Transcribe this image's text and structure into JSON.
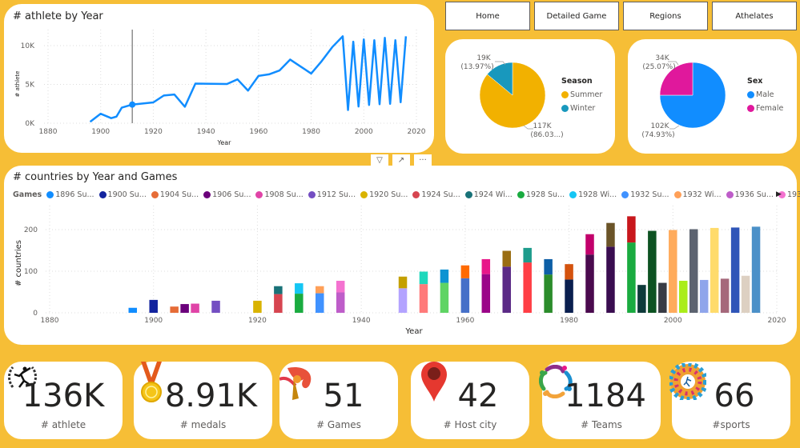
{
  "nav": {
    "buttons": [
      "Home",
      "Detailed Game",
      "Regions",
      "Athelates"
    ]
  },
  "line_card": {
    "title": "# athlete by Year"
  },
  "season_pie": {
    "legend_title": "Season",
    "labels": {
      "winter_value": "19K",
      "winter_pct": "(13.97%)",
      "summer_value": "117K",
      "summer_pct": "(86.03...)"
    }
  },
  "sex_pie": {
    "legend_title": "Sex",
    "labels": {
      "female_value": "34K",
      "female_pct": "(25.07%)",
      "male_value": "102K",
      "male_pct": "(74.93%)"
    }
  },
  "bar_card": {
    "title": "# countries by Year and Games",
    "legend_title": "Games",
    "legend_items": [
      {
        "label": "1896 Su...",
        "color": "#118dff"
      },
      {
        "label": "1900 Su...",
        "color": "#12239e"
      },
      {
        "label": "1904 Su...",
        "color": "#e66c37"
      },
      {
        "label": "1906 Su...",
        "color": "#6b007b"
      },
      {
        "label": "1908 Su...",
        "color": "#e044a7"
      },
      {
        "label": "1912 Su...",
        "color": "#744ec2"
      },
      {
        "label": "1920 Su...",
        "color": "#d9b300"
      },
      {
        "label": "1924 Su...",
        "color": "#d64550"
      },
      {
        "label": "1924 Wi...",
        "color": "#197278"
      },
      {
        "label": "1928 Su...",
        "color": "#1aab40"
      },
      {
        "label": "1928 Wi...",
        "color": "#15c6f4"
      },
      {
        "label": "1932 Su...",
        "color": "#4092ff"
      },
      {
        "label": "1932 Wi...",
        "color": "#ffa058"
      },
      {
        "label": "1936 Su...",
        "color": "#be5dc9"
      },
      {
        "label": "1936 Wi...",
        "color": "#f472d0"
      }
    ],
    "controls": {
      "filter": "filter-icon",
      "focus": "focus-mode-icon",
      "more": "more-options-icon"
    }
  },
  "chart_data": [
    {
      "type": "line",
      "title": "# athlete by Year",
      "xlabel": "Year",
      "ylabel": "# athlete",
      "xlim": [
        1880,
        2020
      ],
      "ylim": [
        0,
        12000
      ],
      "x_ticks": [
        "1880",
        "1900",
        "1920",
        "1940",
        "1960",
        "1980",
        "2000",
        "2020"
      ],
      "y_ticks": [
        "0K",
        "5K",
        "10K"
      ],
      "highlight": {
        "x": 1912,
        "y": 2400
      },
      "color": "#118dff",
      "x": [
        1896,
        1900,
        1904,
        1906,
        1908,
        1912,
        1920,
        1924,
        1928,
        1932,
        1936,
        1948,
        1952,
        1956,
        1960,
        1964,
        1968,
        1972,
        1976,
        1980,
        1984,
        1988,
        1992,
        1994,
        1996,
        1998,
        2000,
        2002,
        2004,
        2006,
        2008,
        2010,
        2012,
        2014,
        2016
      ],
      "y": [
        180,
        1220,
        650,
        850,
        2000,
        2400,
        2680,
        3570,
        3700,
        2120,
        5100,
        5050,
        5650,
        4200,
        6100,
        6300,
        6800,
        8200,
        7300,
        6400,
        8000,
        9800,
        11200,
        1700,
        10500,
        2150,
        10800,
        2350,
        10700,
        2450,
        11000,
        2500,
        10700,
        2700,
        11200
      ]
    },
    {
      "type": "pie",
      "title": "Season",
      "categories": [
        "Summer",
        "Winter"
      ],
      "values": [
        117000,
        19000
      ],
      "percents": [
        86.03,
        13.97
      ],
      "colors": [
        "#f2b100",
        "#1898bd"
      ]
    },
    {
      "type": "pie",
      "title": "Sex",
      "categories": [
        "Male",
        "Female"
      ],
      "values": [
        102000,
        34000
      ],
      "percents": [
        74.93,
        25.07
      ],
      "colors": [
        "#118dff",
        "#e0189c"
      ]
    },
    {
      "type": "bar",
      "stacked": true,
      "title": "# countries by Year and Games",
      "xlabel": "Year",
      "ylabel": "# countries",
      "xlim": [
        1880,
        2020
      ],
      "ylim": [
        0,
        240
      ],
      "x_ticks": [
        "1880",
        "1900",
        "1920",
        "1940",
        "1960",
        "1980",
        "2000",
        "2020"
      ],
      "y_ticks": [
        "0",
        "100",
        "200"
      ],
      "bars": [
        {
          "year": 1896,
          "segments": [
            {
              "value": 12,
              "color": "#118dff"
            }
          ]
        },
        {
          "year": 1900,
          "segments": [
            {
              "value": 31,
              "color": "#12239e"
            }
          ]
        },
        {
          "year": 1904,
          "segments": [
            {
              "value": 15,
              "color": "#e66c37"
            }
          ]
        },
        {
          "year": 1906,
          "segments": [
            {
              "value": 21,
              "color": "#6b007b"
            }
          ]
        },
        {
          "year": 1908,
          "segments": [
            {
              "value": 22,
              "color": "#e044a7"
            }
          ]
        },
        {
          "year": 1912,
          "segments": [
            {
              "value": 29,
              "color": "#744ec2"
            }
          ]
        },
        {
          "year": 1920,
          "segments": [
            {
              "value": 29,
              "color": "#d9b300"
            }
          ]
        },
        {
          "year": 1924,
          "segments": [
            {
              "value": 45,
              "color": "#d64550"
            },
            {
              "value": 19,
              "color": "#197278"
            }
          ]
        },
        {
          "year": 1928,
          "segments": [
            {
              "value": 46,
              "color": "#1aab40"
            },
            {
              "value": 25,
              "color": "#15c6f4"
            }
          ]
        },
        {
          "year": 1932,
          "segments": [
            {
              "value": 47,
              "color": "#4092ff"
            },
            {
              "value": 17,
              "color": "#ffa058"
            }
          ]
        },
        {
          "year": 1936,
          "segments": [
            {
              "value": 49,
              "color": "#be5dc9"
            },
            {
              "value": 28,
              "color": "#f472d0"
            }
          ]
        },
        {
          "year": 1948,
          "segments": [
            {
              "value": 59,
              "color": "#b3a3ff"
            },
            {
              "value": 28,
              "color": "#c4a000"
            }
          ]
        },
        {
          "year": 1952,
          "segments": [
            {
              "value": 69,
              "color": "#ff7a7a"
            },
            {
              "value": 30,
              "color": "#1ed8bc"
            }
          ]
        },
        {
          "year": 1956,
          "segments": [
            {
              "value": 72,
              "color": "#5fd464"
            },
            {
              "value": 32,
              "color": "#0e93d2"
            }
          ]
        },
        {
          "year": 1960,
          "segments": [
            {
              "value": 83,
              "color": "#4670c8"
            },
            {
              "value": 31,
              "color": "#ff6a00"
            }
          ]
        },
        {
          "year": 1964,
          "segments": [
            {
              "value": 93,
              "color": "#9b0588"
            },
            {
              "value": 36,
              "color": "#e8178a"
            }
          ]
        },
        {
          "year": 1968,
          "segments": [
            {
              "value": 111,
              "color": "#5b2a86"
            },
            {
              "value": 38,
              "color": "#9a6d12"
            }
          ]
        },
        {
          "year": 1972,
          "segments": [
            {
              "value": 121,
              "color": "#ff3e45"
            },
            {
              "value": 35,
              "color": "#1e9c8c"
            }
          ]
        },
        {
          "year": 1976,
          "segments": [
            {
              "value": 92,
              "color": "#2b8c2b"
            },
            {
              "value": 37,
              "color": "#0d5fa6"
            }
          ]
        },
        {
          "year": 1980,
          "segments": [
            {
              "value": 80,
              "color": "#0a1f4f"
            },
            {
              "value": 37,
              "color": "#d4530e"
            }
          ]
        },
        {
          "year": 1984,
          "segments": [
            {
              "value": 140,
              "color": "#4a0a4e"
            },
            {
              "value": 49,
              "color": "#c2006b"
            }
          ]
        },
        {
          "year": 1988,
          "segments": [
            {
              "value": 159,
              "color": "#3a0d50"
            },
            {
              "value": 57,
              "color": "#6b5428"
            }
          ]
        },
        {
          "year": 1992,
          "segments": [
            {
              "value": 169,
              "color": "#1aab40"
            },
            {
              "value": 63,
              "color": "#c8171c"
            }
          ]
        },
        {
          "year": 1994,
          "segments": [
            {
              "value": 67,
              "color": "#0e3a3a"
            }
          ]
        },
        {
          "year": 1996,
          "segments": [
            {
              "value": 197,
              "color": "#0d5222"
            }
          ]
        },
        {
          "year": 1998,
          "segments": [
            {
              "value": 72,
              "color": "#383b45"
            }
          ]
        },
        {
          "year": 2000,
          "segments": [
            {
              "value": 199,
              "color": "#ffab5c"
            }
          ]
        },
        {
          "year": 2002,
          "segments": [
            {
              "value": 77,
              "color": "#aaed1a"
            }
          ]
        },
        {
          "year": 2004,
          "segments": [
            {
              "value": 201,
              "color": "#5c6370"
            }
          ]
        },
        {
          "year": 2006,
          "segments": [
            {
              "value": 79,
              "color": "#8fa5eb"
            }
          ]
        },
        {
          "year": 2008,
          "segments": [
            {
              "value": 204,
              "color": "#ffdb6b"
            }
          ]
        },
        {
          "year": 2010,
          "segments": [
            {
              "value": 82,
              "color": "#a5687b"
            }
          ]
        },
        {
          "year": 2012,
          "segments": [
            {
              "value": 205,
              "color": "#2f55b8"
            }
          ]
        },
        {
          "year": 2014,
          "segments": [
            {
              "value": 89,
              "color": "#ddd0c2"
            }
          ]
        },
        {
          "year": 2016,
          "segments": [
            {
              "value": 207,
              "color": "#4b90c8"
            }
          ]
        }
      ]
    }
  ],
  "kpis": [
    {
      "value": "136K",
      "label": "# athlete",
      "icon": "sprinter-laurel-icon"
    },
    {
      "value": "8.91K",
      "label": "# medals",
      "icon": "medal-icon"
    },
    {
      "value": "51",
      "label": "# Games",
      "icon": "olympic-torch-icon"
    },
    {
      "value": "42",
      "label": "# Host city",
      "icon": "map-pin-icon"
    },
    {
      "value": "1184",
      "label": "# Teams",
      "icon": "team-circle-icon"
    },
    {
      "value": "66",
      "label": "#sports",
      "icon": "sports-wheel-icon"
    }
  ]
}
